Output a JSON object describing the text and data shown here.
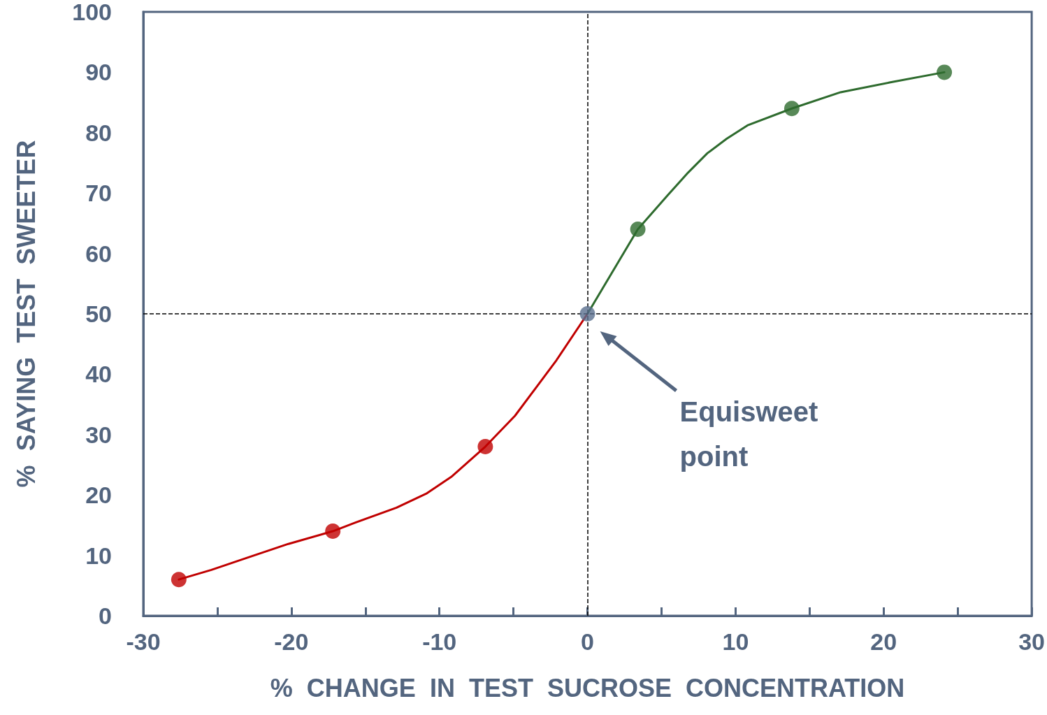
{
  "chart_data": {
    "type": "line",
    "xlabel": "%  CHANGE  IN  TEST  SUCROSE  CONCENTRATION",
    "ylabel": "%  SAYING  TEST  SWEETER",
    "xlim": [
      -30,
      30
    ],
    "xticks": [
      -30,
      {
        "value": -25,
        "label": null
      },
      -20,
      {
        "value": -15,
        "label": null
      },
      -10,
      {
        "value": -5,
        "label": null
      },
      0,
      {
        "value": 5,
        "label": null
      },
      10,
      {
        "value": 15,
        "label": null
      },
      20,
      {
        "value": 25,
        "label": null
      },
      30
    ],
    "ylim": [
      0,
      100
    ],
    "yticks": [
      0,
      10,
      20,
      30,
      40,
      50,
      60,
      70,
      80,
      90,
      100
    ],
    "grid": false,
    "series": [
      {
        "color": "#c00000",
        "marker": "none",
        "x": [
          -27.6,
          -25.4,
          -23.0,
          -20.2,
          -17.2,
          -15.7,
          -12.9,
          -10.9,
          -9.2,
          -6.9,
          -4.9,
          -2.1,
          0
        ],
        "values": [
          6.0,
          7.6,
          9.6,
          11.9,
          14.0,
          15.4,
          17.9,
          20.2,
          23.0,
          28.0,
          33.1,
          42.3,
          50
        ]
      },
      {
        "color": "#2e6b2e",
        "marker": "none",
        "x": [
          0,
          3.4,
          5.4,
          6.8,
          8.1,
          9.4,
          10.8,
          13.8,
          17.1,
          20.4,
          24.1
        ],
        "values": [
          50,
          64,
          69.6,
          73.4,
          76.6,
          79,
          81.2,
          84,
          86.7,
          88.3,
          90
        ]
      },
      {
        "type": "scatter",
        "color": "#c00000",
        "marker": "circle",
        "x": [
          -27.6,
          -17.2,
          -6.9
        ],
        "values": [
          6.0,
          14.0,
          28.0
        ]
      },
      {
        "type": "scatter",
        "color": "#2e6b2e",
        "marker": "circle",
        "x": [
          3.4,
          13.8,
          24.1
        ],
        "values": [
          64,
          84,
          90
        ]
      },
      {
        "type": "scatter",
        "color": "#5a6f8e",
        "marker": "circle",
        "x": [
          0
        ],
        "values": [
          50
        ]
      }
    ],
    "ref_lines": [
      {
        "axis": "x",
        "value": 0,
        "color": "#000000",
        "line_style": "dashed"
      },
      {
        "axis": "y",
        "value": 50,
        "color": "#000000",
        "line_style": "dashed"
      }
    ],
    "annotations": [
      "Equisweet\npoint"
    ]
  }
}
